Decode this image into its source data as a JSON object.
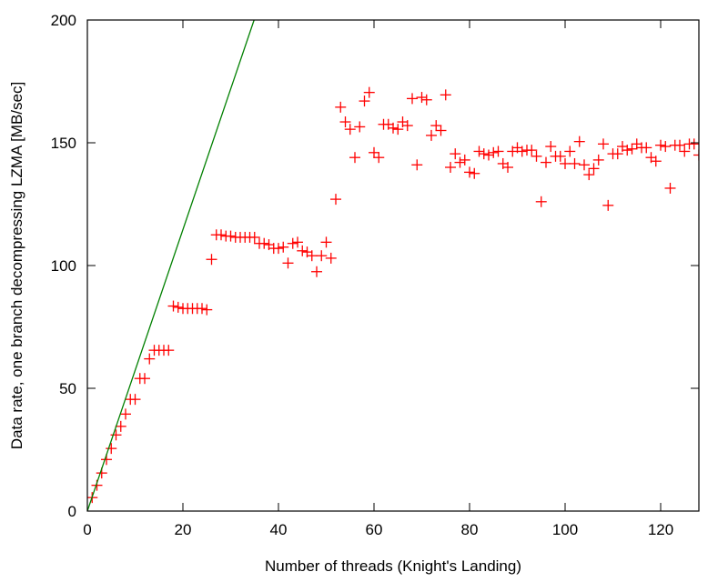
{
  "chart_data": {
    "type": "scatter",
    "title": "",
    "xlabel": "Number of threads (Knight's Landing)",
    "ylabel": "Data rate, one branch decompressing LZMA [MB/sec]",
    "xlim": [
      0,
      128
    ],
    "ylim": [
      0,
      200
    ],
    "xticks": [
      0,
      20,
      40,
      60,
      80,
      100,
      120
    ],
    "yticks": [
      0,
      50,
      100,
      150,
      200
    ],
    "grid": false,
    "legend": "none",
    "series": [
      {
        "kind": "points",
        "marker": "plus",
        "color": "#ff0000",
        "points": [
          [
            1,
            5.5
          ],
          [
            2,
            10.5
          ],
          [
            3,
            15.5
          ],
          [
            4,
            21
          ],
          [
            5,
            25.5
          ],
          [
            6,
            31
          ],
          [
            7,
            34.5
          ],
          [
            8,
            39.5
          ],
          [
            9,
            45.5
          ],
          [
            10,
            45.5
          ],
          [
            11,
            54
          ],
          [
            12,
            54
          ],
          [
            13,
            62
          ],
          [
            14,
            65.5
          ],
          [
            15,
            65.5
          ],
          [
            16,
            65.5
          ],
          [
            17,
            65.5
          ],
          [
            18,
            83.5
          ],
          [
            19,
            83
          ],
          [
            20,
            82.5
          ],
          [
            21,
            82.5
          ],
          [
            22,
            82.5
          ],
          [
            23,
            82.5
          ],
          [
            24,
            82.5
          ],
          [
            25,
            82
          ],
          [
            26,
            102.5
          ],
          [
            27,
            112.5
          ],
          [
            28,
            112.5
          ],
          [
            29,
            112
          ],
          [
            30,
            112
          ],
          [
            31,
            111.5
          ],
          [
            32,
            111.5
          ],
          [
            33,
            111.5
          ],
          [
            34,
            111.5
          ],
          [
            35,
            111.5
          ],
          [
            36,
            109
          ],
          [
            37,
            109
          ],
          [
            38,
            108.5
          ],
          [
            39,
            107
          ],
          [
            40,
            107
          ],
          [
            41,
            107.5
          ],
          [
            42,
            101
          ],
          [
            43,
            109
          ],
          [
            44,
            109.5
          ],
          [
            45,
            106
          ],
          [
            46,
            105.5
          ],
          [
            47,
            104
          ],
          [
            48,
            97.5
          ],
          [
            49,
            104
          ],
          [
            50,
            109.5
          ],
          [
            51,
            103
          ],
          [
            52,
            127
          ],
          [
            53,
            164.5
          ],
          [
            54,
            158.5
          ],
          [
            55,
            155.5
          ],
          [
            56,
            144
          ],
          [
            57,
            156.5
          ],
          [
            58,
            167
          ],
          [
            59,
            170.5
          ],
          [
            60,
            146
          ],
          [
            61,
            144
          ],
          [
            62,
            157.5
          ],
          [
            63,
            157.5
          ],
          [
            64,
            156
          ],
          [
            65,
            155.5
          ],
          [
            66,
            158.5
          ],
          [
            67,
            157
          ],
          [
            68,
            168
          ],
          [
            69,
            141
          ],
          [
            70,
            168.5
          ],
          [
            71,
            167.5
          ],
          [
            72,
            153
          ],
          [
            73,
            157
          ],
          [
            74,
            155
          ],
          [
            75,
            169.5
          ],
          [
            76,
            140
          ],
          [
            77,
            145.5
          ],
          [
            78,
            142
          ],
          [
            79,
            143
          ],
          [
            80,
            138
          ],
          [
            81,
            137.5
          ],
          [
            82,
            146.5
          ],
          [
            83,
            145.5
          ],
          [
            84,
            145
          ],
          [
            85,
            146
          ],
          [
            86,
            146.5
          ],
          [
            87,
            141.5
          ],
          [
            88,
            140
          ],
          [
            89,
            146.5
          ],
          [
            90,
            148
          ],
          [
            91,
            146.5
          ],
          [
            92,
            147
          ],
          [
            93,
            147
          ],
          [
            94,
            144.5
          ],
          [
            95,
            126
          ],
          [
            96,
            142
          ],
          [
            97,
            148.5
          ],
          [
            98,
            144.5
          ],
          [
            99,
            144.5
          ],
          [
            100,
            141.5
          ],
          [
            101,
            146.5
          ],
          [
            102,
            141.5
          ],
          [
            103,
            150.5
          ],
          [
            104,
            141
          ],
          [
            105,
            137
          ],
          [
            106,
            139.5
          ],
          [
            107,
            143
          ],
          [
            108,
            149.5
          ],
          [
            109,
            124.5
          ],
          [
            110,
            145.5
          ],
          [
            111,
            145.5
          ],
          [
            112,
            148.5
          ],
          [
            113,
            147
          ],
          [
            114,
            147.5
          ],
          [
            115,
            149.5
          ],
          [
            116,
            148
          ],
          [
            117,
            148
          ],
          [
            118,
            144
          ],
          [
            119,
            142.5
          ],
          [
            120,
            149
          ],
          [
            121,
            148.5
          ],
          [
            122,
            131.5
          ],
          [
            123,
            149
          ],
          [
            124,
            149
          ],
          [
            125,
            146.5
          ],
          [
            126,
            149.5
          ],
          [
            127,
            149.5
          ],
          [
            128,
            145
          ]
        ]
      },
      {
        "kind": "line",
        "color": "#008000",
        "points": [
          [
            0,
            0
          ],
          [
            34.9,
            200
          ]
        ]
      }
    ]
  }
}
